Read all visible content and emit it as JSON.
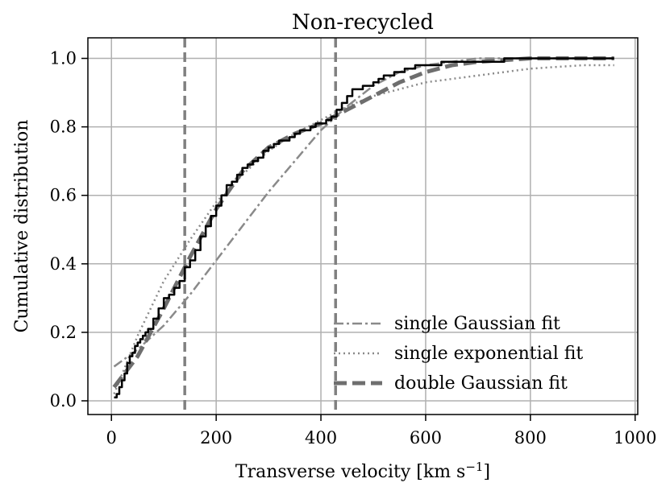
{
  "chart_data": {
    "type": "line",
    "title": "Non-recycled",
    "xlabel": "Transverse velocity [km s",
    "xlabel_sup": "−1",
    "xlabel_end": "]",
    "ylabel": "Cumulative distribution",
    "xlim": [
      -45,
      1005
    ],
    "ylim": [
      -0.04,
      1.06
    ],
    "xticks": [
      0,
      200,
      400,
      600,
      800,
      1000
    ],
    "xtick_labels": [
      "0",
      "200",
      "400",
      "600",
      "800",
      "1000"
    ],
    "yticks": [
      0.0,
      0.2,
      0.4,
      0.6,
      0.8,
      1.0
    ],
    "ytick_labels": [
      "0.0",
      "0.2",
      "0.4",
      "0.6",
      "0.8",
      "1.0"
    ],
    "grid": true,
    "legend_position": "lower-right",
    "vlines": [
      140,
      428
    ],
    "series": [
      {
        "id": "empirical",
        "style": "solid",
        "color": "#000000",
        "x": [
          5,
          10,
          15,
          20,
          25,
          30,
          35,
          40,
          45,
          50,
          55,
          60,
          65,
          70,
          80,
          90,
          100,
          110,
          120,
          130,
          140,
          150,
          160,
          170,
          180,
          190,
          200,
          210,
          220,
          230,
          240,
          250,
          260,
          270,
          280,
          290,
          300,
          310,
          320,
          330,
          340,
          350,
          360,
          370,
          380,
          390,
          400,
          410,
          420,
          430,
          440,
          450,
          460,
          470,
          480,
          490,
          500,
          510,
          520,
          530,
          540,
          550,
          560,
          580,
          600,
          630,
          660,
          700,
          750,
          800,
          850,
          900,
          960
        ],
        "y": [
          0.01,
          0.02,
          0.04,
          0.06,
          0.08,
          0.11,
          0.13,
          0.14,
          0.16,
          0.17,
          0.18,
          0.19,
          0.2,
          0.21,
          0.24,
          0.27,
          0.3,
          0.31,
          0.33,
          0.35,
          0.39,
          0.41,
          0.44,
          0.48,
          0.51,
          0.54,
          0.57,
          0.6,
          0.63,
          0.64,
          0.66,
          0.68,
          0.69,
          0.7,
          0.71,
          0.73,
          0.74,
          0.75,
          0.76,
          0.76,
          0.77,
          0.78,
          0.79,
          0.79,
          0.8,
          0.81,
          0.81,
          0.82,
          0.83,
          0.85,
          0.87,
          0.89,
          0.91,
          0.91,
          0.92,
          0.92,
          0.93,
          0.94,
          0.95,
          0.95,
          0.96,
          0.96,
          0.97,
          0.98,
          0.98,
          0.99,
          0.99,
          0.99,
          1.0,
          1.0,
          1.0,
          1.0,
          1.0
        ]
      },
      {
        "id": "single-gaussian",
        "name": "single Gaussian fit",
        "style": "dashdot",
        "color": "#8a8a8a",
        "x": [
          5,
          50,
          100,
          150,
          200,
          250,
          300,
          350,
          400,
          450,
          500,
          550,
          600,
          650,
          700,
          800,
          900,
          960
        ],
        "y": [
          0.1,
          0.15,
          0.22,
          0.31,
          0.41,
          0.51,
          0.61,
          0.7,
          0.79,
          0.86,
          0.92,
          0.96,
          0.98,
          0.99,
          1.0,
          1.0,
          1.0,
          1.0
        ]
      },
      {
        "id": "single-exponential",
        "name": "single exponential fit",
        "style": "dotted",
        "color": "#8a8a8a",
        "x": [
          5,
          50,
          100,
          150,
          200,
          250,
          300,
          350,
          400,
          450,
          500,
          550,
          600,
          650,
          700,
          800,
          900,
          960
        ],
        "y": [
          0.02,
          0.19,
          0.35,
          0.47,
          0.58,
          0.66,
          0.73,
          0.78,
          0.82,
          0.86,
          0.89,
          0.91,
          0.93,
          0.94,
          0.95,
          0.97,
          0.98,
          0.98
        ]
      },
      {
        "id": "double-gaussian",
        "name": "double Gaussian fit",
        "style": "dashed",
        "color": "#6e6e6e",
        "x": [
          5,
          50,
          100,
          150,
          200,
          250,
          300,
          350,
          400,
          450,
          500,
          550,
          600,
          650,
          700,
          800,
          900,
          960
        ],
        "y": [
          0.04,
          0.13,
          0.27,
          0.42,
          0.56,
          0.67,
          0.74,
          0.78,
          0.81,
          0.85,
          0.89,
          0.93,
          0.96,
          0.98,
          0.99,
          1.0,
          1.0,
          1.0
        ]
      }
    ]
  }
}
